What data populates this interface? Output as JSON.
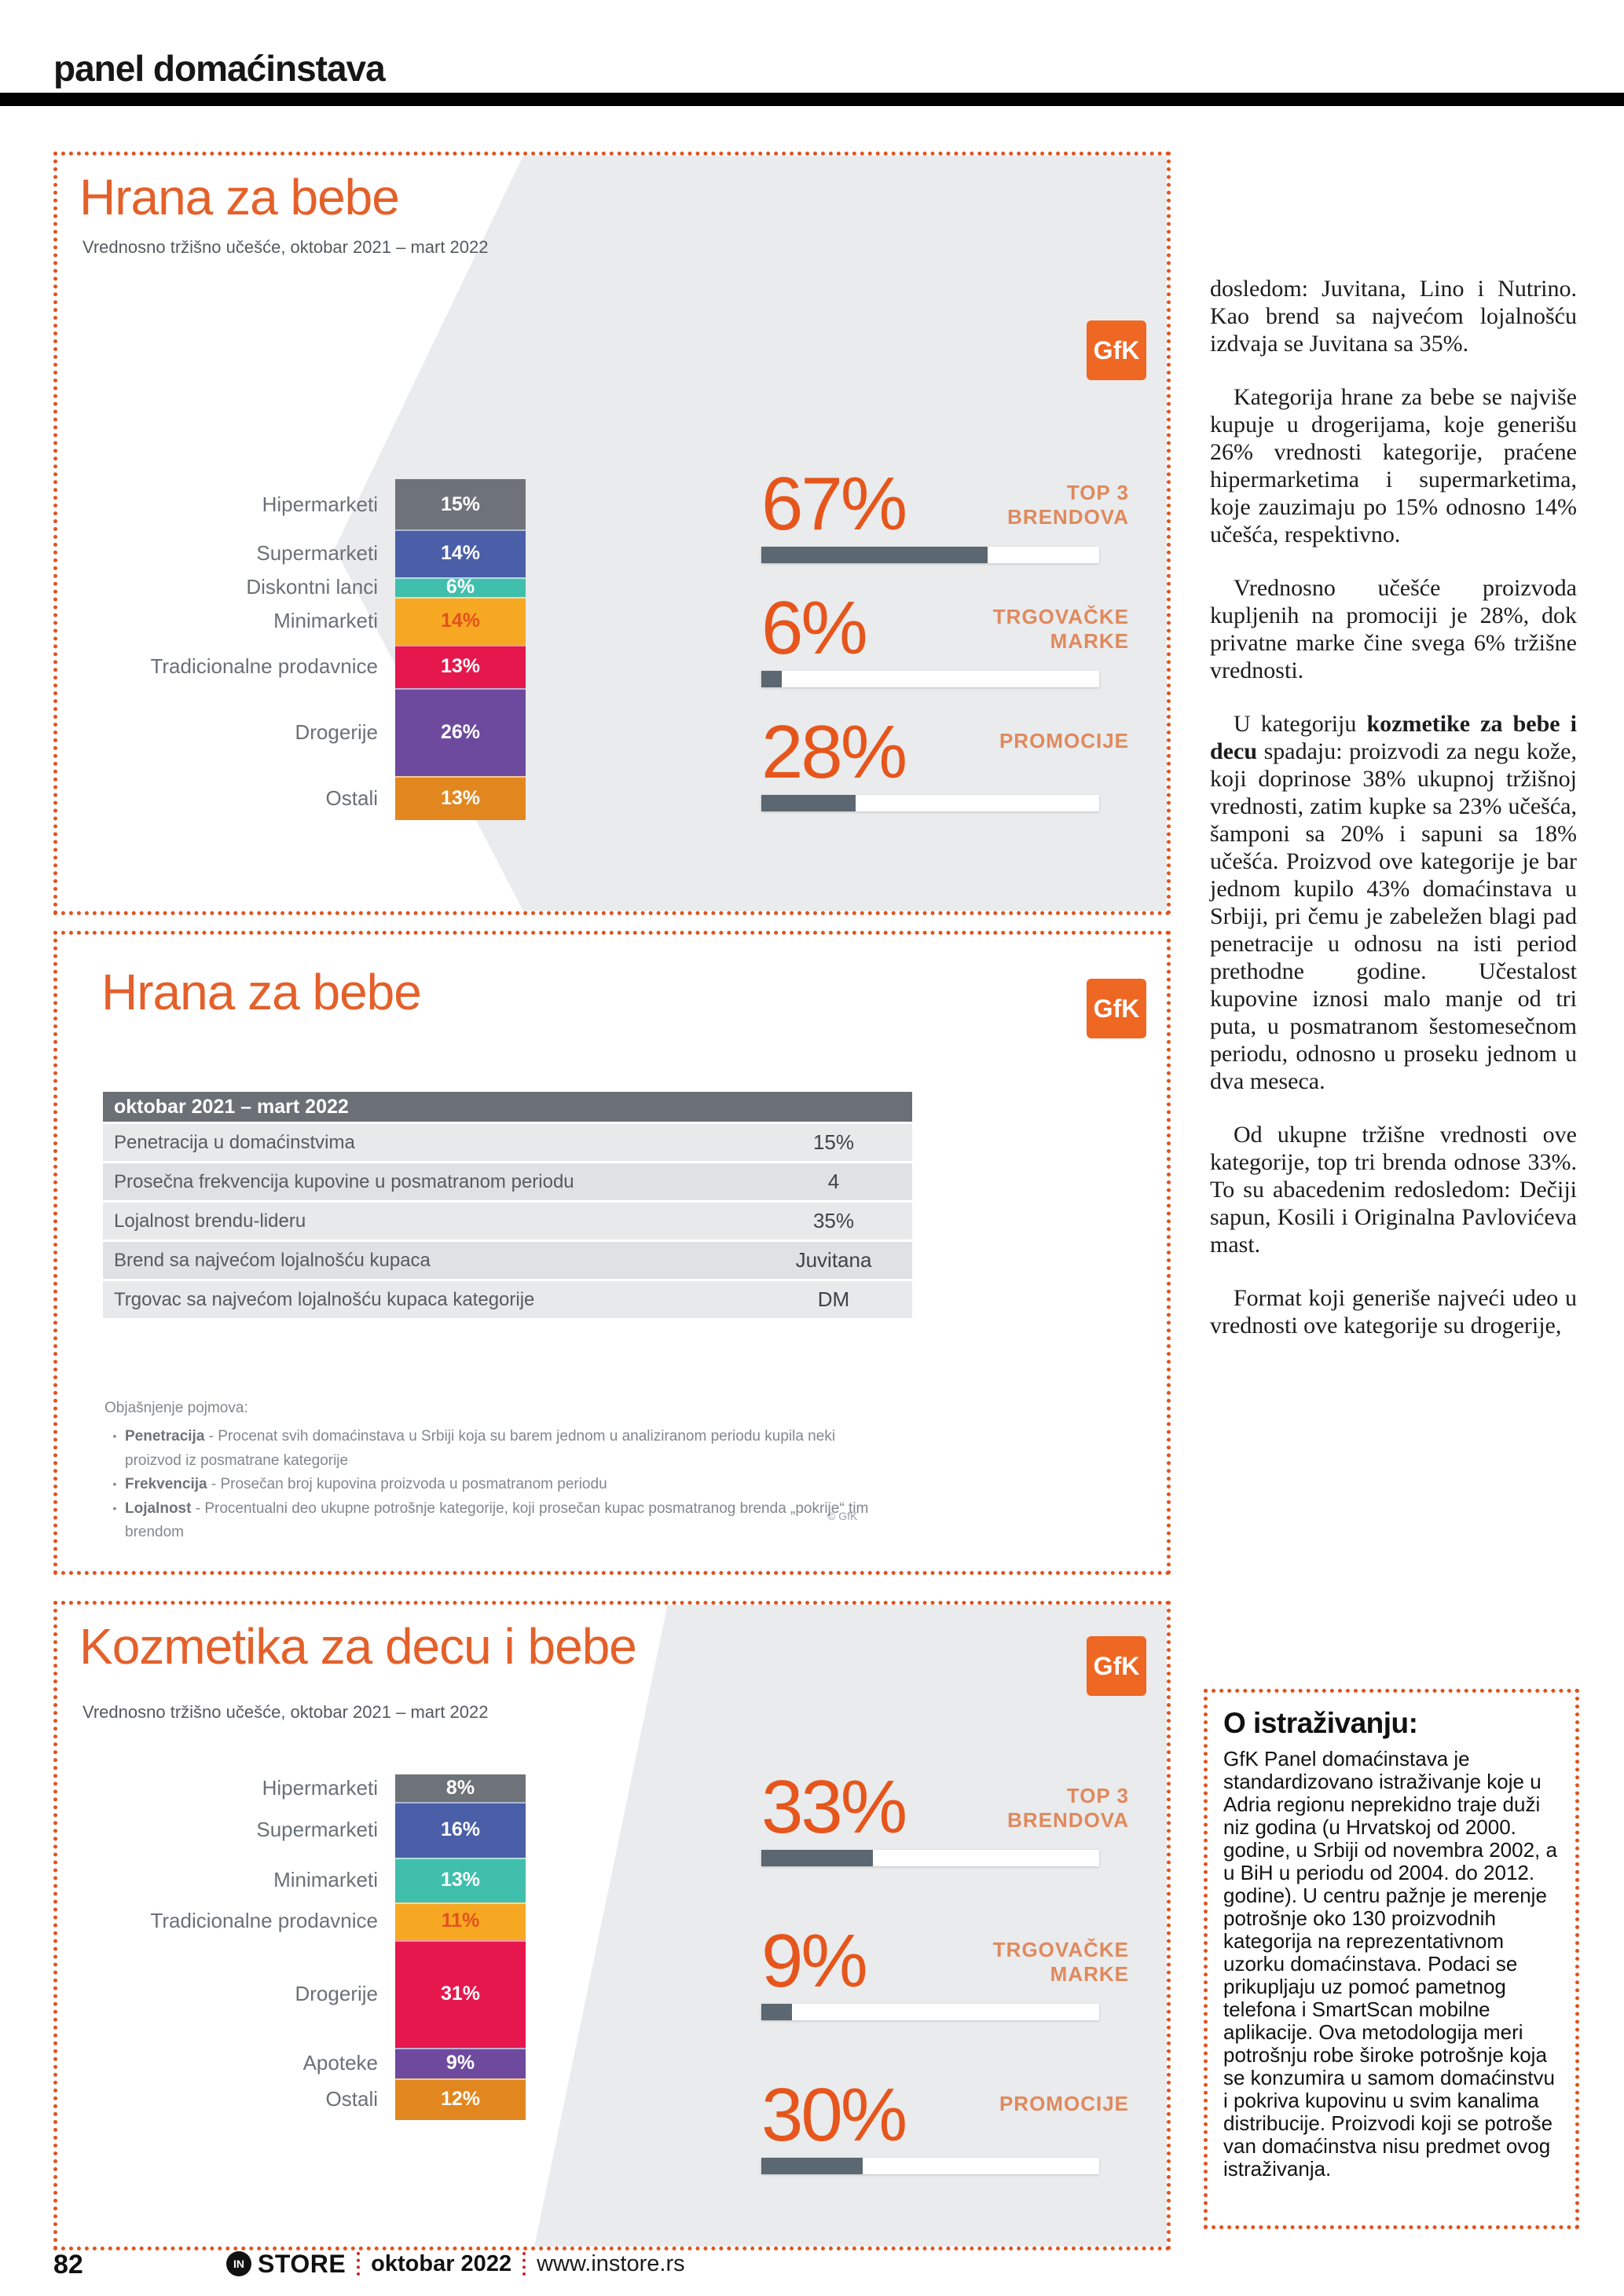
{
  "page": {
    "section_title": "panel domaćinstava",
    "footer": {
      "page_number": "82",
      "logo_in": "IN",
      "logo_store": "STORE",
      "issue": "oktobar 2022",
      "website": "www.instore.rs"
    }
  },
  "colors": {
    "accent_orange": "#e2521c",
    "title_orange": "#e4602a",
    "stat_fill_gray": "#5b6771",
    "table_header_gray": "#6a7075",
    "bar_palette": [
      "#6e7379",
      "#4a5fa8",
      "#41bfad",
      "#f7a823",
      "#e5174d",
      "#6e4a9e",
      "#e2871f"
    ]
  },
  "box1": {
    "title": "Hrana za bebe",
    "subtitle": "Vrednosno tržišno učešće, oktobar 2021 – mart 2022",
    "logo_text": "GfK",
    "chart_data": {
      "type": "bar",
      "title": "Hrana za bebe",
      "subtitle": "Vrednosno tržišno učešće, oktobar 2021 – mart 2022",
      "unit": "%",
      "categories": [
        "Hipermarketi",
        "Supermarketi",
        "Diskontni lanci",
        "Minimarketi",
        "Tradicionalne prodavnice",
        "Drogerije",
        "Ostali"
      ],
      "values": [
        15,
        14,
        6,
        14,
        13,
        26,
        13
      ],
      "colors": [
        "#6e7379",
        "#4a5fa8",
        "#41bfad",
        "#f7a823",
        "#e5174d",
        "#6e4a9e",
        "#e2871f"
      ],
      "value_label_colors": [
        "#ffffff",
        "#ffffff",
        "#ffffff",
        "#e2521c",
        "#ffffff",
        "#ffffff",
        "#ffffff"
      ],
      "stats": [
        {
          "value_label": "67%",
          "pct": 67,
          "label": "TOP 3\nBRENDOVA"
        },
        {
          "value_label": "6%",
          "pct": 6,
          "label": "TRGOVAČKE\nMARKE"
        },
        {
          "value_label": "28%",
          "pct": 28,
          "label": "PROMOCIJE"
        }
      ]
    }
  },
  "box2": {
    "title": "Hrana za bebe",
    "logo_text": "GfK",
    "table": {
      "header": "oktobar 2021 – mart 2022",
      "rows": [
        {
          "label": "Penetracija u domaćinstvima",
          "value": "15%"
        },
        {
          "label": "Prosečna frekvencija kupovine u posmatranom periodu",
          "value": "4"
        },
        {
          "label": "Lojalnost brendu-lideru",
          "value": "35%"
        },
        {
          "label": "Brend sa najvećom lojalnošću kupaca",
          "value": "Juvitana"
        },
        {
          "label": "Trgovac sa najvećom lojalnošću kupaca kategorije",
          "value": "DM"
        }
      ]
    },
    "glossary": {
      "heading": "Objašnjenje pojmova:",
      "items": [
        {
          "term": "Penetracija",
          "definition": " - Procenat svih domaćinstava u Srbiji koja su barem jednom u analiziranom periodu kupila neki proizvod iz posmatrane kategorije"
        },
        {
          "term": "Frekvencija",
          "definition": " - Prosečan broj kupovina proizvoda u posmatranom periodu"
        },
        {
          "term": "Lojalnost",
          "definition": " - Procentualni deo ukupne potrošnje kategorije, koji prosečan kupac posmatranog brenda „pokrije“ tim brendom"
        }
      ],
      "copyright": "© GfK"
    }
  },
  "box3": {
    "title": "Kozmetika za decu i bebe",
    "subtitle": "Vrednosno tržišno učešće, oktobar 2021 – mart 2022",
    "logo_text": "GfK",
    "chart_data": {
      "type": "bar",
      "title": "Kozmetika za decu i bebe",
      "subtitle": "Vrednosno tržišno učešće, oktobar 2021 – mart 2022",
      "unit": "%",
      "categories": [
        "Hipermarketi",
        "Supermarketi",
        "Minimarketi",
        "Tradicionalne prodavnice",
        "Drogerije",
        "Apoteke",
        "Ostali"
      ],
      "values": [
        8,
        16,
        13,
        11,
        31,
        9,
        12
      ],
      "colors": [
        "#6e7379",
        "#4a5fa8",
        "#41bfad",
        "#f7a823",
        "#e5174d",
        "#6e4a9e",
        "#e2871f"
      ],
      "value_label_colors": [
        "#ffffff",
        "#ffffff",
        "#ffffff",
        "#e2521c",
        "#ffffff",
        "#ffffff",
        "#ffffff"
      ],
      "stats": [
        {
          "value_label": "33%",
          "pct": 33,
          "label": "TOP 3\nBRENDOVA"
        },
        {
          "value_label": "9%",
          "pct": 9,
          "label": "TRGOVAČKE\nMARKE"
        },
        {
          "value_label": "30%",
          "pct": 30,
          "label": "PROMOCIJE"
        }
      ]
    }
  },
  "article": {
    "paragraphs": [
      {
        "indent": false,
        "runs": [
          {
            "b": false,
            "t": "dosledom: Juvitana, Lino i Nutrino. Kao brend sa najvećom lojalnošću izdvaja se Juvitana sa 35%."
          }
        ]
      },
      {
        "indent": true,
        "runs": [
          {
            "b": false,
            "t": "Kategorija hrane za bebe se najviše kupuje u drogerijama, koje generišu 26% vrednosti kategorije, praćene hipermarketima i supermarketima, koje zauzimaju po 15% odnosno 14% učešća, respektivno."
          }
        ]
      },
      {
        "indent": true,
        "runs": [
          {
            "b": false,
            "t": "Vrednosno učešće proizvoda kupljenih na promociji je 28%, dok privatne marke čine svega 6% tržišne vrednosti."
          }
        ]
      },
      {
        "indent": true,
        "runs": [
          {
            "b": false,
            "t": "U kategoriju "
          },
          {
            "b": true,
            "t": "kozmetike za bebe i decu"
          },
          {
            "b": false,
            "t": " spadaju: proizvodi za negu kože, koji doprinose 38% ukupnoj tržišnoj vrednosti, zatim kupke sa 23% učešća, šamponi sa 20% i sapuni sa 18% učešća. Proizvod ove kategorije je bar jednom kupilo 43% domaćinstava u Srbiji, pri čemu je zabeležen blagi pad penetracije u odnosu na isti period prethodne godine. Učestalost kupovine iznosi malo manje od tri puta, u posmatranom šestomesečnom periodu, odnosno u proseku jednom u dva meseca."
          }
        ]
      },
      {
        "indent": true,
        "runs": [
          {
            "b": false,
            "t": "Od ukupne tržišne vrednosti ove kategorije, top tri brenda odnose 33%. To su abacedenim redosledom: Dečiji sapun, Kosili i Originalna Pavlovićeva mast."
          }
        ]
      },
      {
        "indent": true,
        "runs": [
          {
            "b": false,
            "t": "Format koji generiše najveći udeo u vrednosti ove kategorije su drogerije,"
          }
        ]
      }
    ]
  },
  "about": {
    "heading": "O istraživanju:",
    "body": "GfK Panel domaćinstava je standardizovano istraživanje koje u Adria regionu neprekidno traje duži niz godina (u Hrvatskoj od 2000. godine, u Srbiji od novembra 2002, a u BiH u periodu od 2004. do 2012. godine). U centru pažnje je merenje potrošnje oko 130 proizvodnih kategorija na reprezentativnom uzorku domaćinstava. Podaci se prikupljaju uz pomoć pametnog telefona i SmartScan mobilne aplikacije. Ova metodologija meri potrošnju robe široke potrošnje koja se konzumira u samom domaćinstvu i pokriva kupovinu u svim kanalima distribucije. Proizvodi koji se potroše van domaćinstva nisu predmet ovog istraživanja."
  }
}
